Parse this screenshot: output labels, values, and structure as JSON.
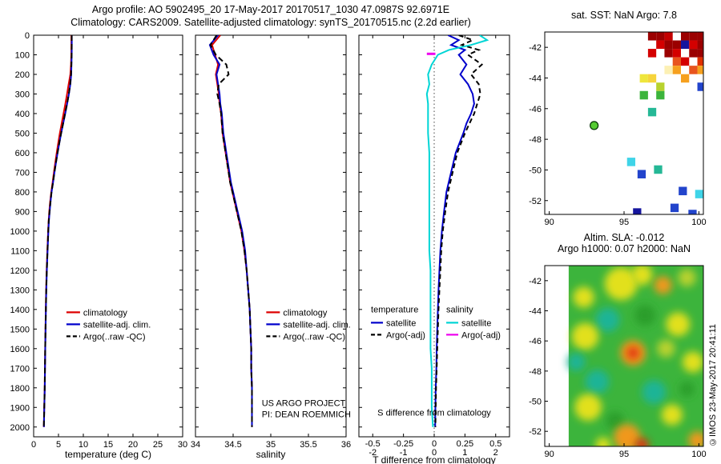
{
  "header": {
    "line1": "Argo profile: AO 5902495_20 17-May-2017 20170517_1030 47.0987S 92.6971E",
    "line2": "Climatology: CARS2009. Satellite-adjusted climatology: synTS_20170515.nc (2.2d earlier)"
  },
  "copyright": "©IMOS 23-May-2017 20:41:11",
  "chart_data": [
    {
      "id": "temperature",
      "type": "line",
      "xlabel": "temperature (deg C)",
      "xlim": [
        0,
        30
      ],
      "xticks": [
        "0",
        "5",
        "10",
        "15",
        "20",
        "25",
        "30"
      ],
      "ylim": [
        0,
        2050
      ],
      "yticks": [
        "0",
        "100",
        "200",
        "300",
        "400",
        "500",
        "600",
        "700",
        "800",
        "900",
        "1000",
        "1100",
        "1200",
        "1300",
        "1400",
        "1500",
        "1600",
        "1700",
        "1800",
        "1900",
        "2000"
      ],
      "ylabels": true,
      "depth": [
        0,
        50,
        100,
        150,
        200,
        250,
        300,
        350,
        400,
        450,
        500,
        550,
        600,
        650,
        700,
        750,
        800,
        850,
        900,
        950,
        1000,
        1100,
        1200,
        1300,
        1400,
        1500,
        1600,
        1700,
        1800,
        1900,
        2000
      ],
      "series": [
        {
          "name": "climatology",
          "color": "#dd0000",
          "values": [
            7.6,
            7.6,
            7.58,
            7.52,
            7.38,
            7.05,
            6.72,
            6.38,
            6.02,
            5.65,
            5.28,
            4.95,
            4.65,
            4.35,
            4.08,
            3.82,
            3.55,
            3.32,
            3.15,
            3.02,
            2.92,
            2.76,
            2.62,
            2.52,
            2.44,
            2.38,
            2.32,
            2.27,
            2.22,
            2.13,
            2.05
          ]
        },
        {
          "name": "satellite-adj. clim.",
          "color": "#0000cc",
          "values": [
            7.68,
            7.68,
            7.66,
            7.62,
            7.56,
            7.38,
            7.1,
            6.75,
            6.35,
            5.95,
            5.55,
            5.18,
            4.82,
            4.5,
            4.2,
            3.92,
            3.62,
            3.4,
            3.22,
            3.06,
            2.96,
            2.8,
            2.66,
            2.55,
            2.47,
            2.4,
            2.34,
            2.29,
            2.24,
            2.15,
            2.06
          ]
        },
        {
          "name": "Argo(..raw -QC)",
          "color": "#000000",
          "dash": "7,4",
          "values": [
            7.66,
            7.66,
            7.64,
            7.6,
            7.54,
            7.36,
            7.08,
            6.73,
            6.33,
            5.93,
            5.53,
            5.16,
            4.8,
            4.48,
            4.18,
            3.9,
            3.6,
            3.38,
            3.2,
            3.04,
            2.94,
            2.79,
            2.65,
            2.54,
            2.46,
            2.39,
            2.33,
            2.28,
            2.23,
            2.14,
            2.05
          ]
        }
      ],
      "legend": {
        "x": 0.22,
        "y": 0.69
      }
    },
    {
      "id": "salinity",
      "type": "line",
      "xlabel": "salinity",
      "xlim": [
        34,
        36
      ],
      "xticks": [
        "34",
        "34.5",
        "35",
        "35.5",
        "36"
      ],
      "ylim": [
        0,
        2050
      ],
      "yticks": [
        "0",
        "100",
        "200",
        "300",
        "400",
        "500",
        "600",
        "700",
        "800",
        "900",
        "1000",
        "1100",
        "1200",
        "1300",
        "1400",
        "1500",
        "1600",
        "1700",
        "1800",
        "1900",
        "2000"
      ],
      "depth": [
        0,
        50,
        100,
        150,
        200,
        250,
        300,
        350,
        400,
        450,
        500,
        550,
        600,
        650,
        700,
        750,
        800,
        850,
        900,
        950,
        1000,
        1100,
        1200,
        1300,
        1400,
        1500,
        1600,
        1700,
        1800,
        1900,
        2000
      ],
      "series": [
        {
          "name": "climatology",
          "color": "#dd0000",
          "values": [
            34.33,
            34.22,
            34.26,
            34.3,
            34.27,
            34.29,
            34.31,
            34.32,
            34.34,
            34.35,
            34.36,
            34.38,
            34.4,
            34.42,
            34.44,
            34.46,
            34.49,
            34.52,
            34.55,
            34.58,
            34.61,
            34.65,
            34.68,
            34.7,
            34.72,
            34.73,
            34.74,
            34.74,
            34.75,
            34.75,
            34.75
          ]
        },
        {
          "name": "satellite-adj. clim.",
          "color": "#0000cc",
          "values": [
            34.3,
            34.19,
            34.24,
            34.32,
            34.28,
            34.3,
            34.32,
            34.33,
            34.35,
            34.36,
            34.37,
            34.39,
            34.41,
            34.43,
            34.45,
            34.47,
            34.5,
            34.53,
            34.56,
            34.59,
            34.62,
            34.66,
            34.68,
            34.7,
            34.72,
            34.73,
            34.74,
            34.74,
            34.75,
            34.75,
            34.75
          ]
        },
        {
          "name": "Argo(..raw -QC)",
          "color": "#000000",
          "dash": "7,4",
          "values": [
            34.28,
            34.2,
            34.27,
            34.41,
            34.44,
            34.31,
            34.29,
            34.32,
            34.34,
            34.35,
            34.36,
            34.38,
            34.4,
            34.42,
            34.44,
            34.46,
            34.49,
            34.52,
            34.55,
            34.58,
            34.61,
            34.65,
            34.68,
            34.7,
            34.72,
            34.73,
            34.74,
            34.74,
            34.75,
            34.75,
            34.75
          ]
        }
      ],
      "legend": {
        "x": 0.47,
        "y": 0.69
      },
      "texts": [
        {
          "x": 0.44,
          "y": 0.923,
          "t": "US ARGO PROJECT"
        },
        {
          "x": 0.44,
          "y": 0.951,
          "t": "PI: DEAN ROEMMICH"
        }
      ]
    },
    {
      "id": "difference",
      "type": "line",
      "xlabel": "T difference from climatology",
      "xlim": [
        -2.45,
        2.45
      ],
      "xticks": [
        "-2",
        "-1",
        "0",
        "1",
        "2"
      ],
      "sticks": [
        "-0.5",
        "-0.25",
        "0",
        "0.25",
        "0.5"
      ],
      "s_scale": 4,
      "zero_line": true,
      "ylim": [
        0,
        2050
      ],
      "yticks": [
        "0",
        "100",
        "200",
        "300",
        "400",
        "500",
        "600",
        "700",
        "800",
        "900",
        "1000",
        "1100",
        "1200",
        "1300",
        "1400",
        "1500",
        "1600",
        "1700",
        "1800",
        "1900",
        "2000"
      ],
      "depth": [
        0,
        25,
        50,
        75,
        100,
        150,
        200,
        250,
        300,
        350,
        400,
        450,
        500,
        600,
        700,
        800,
        900,
        1000,
        1100,
        1200,
        1300,
        1400,
        1500,
        1600,
        1700,
        1800,
        1900,
        2000
      ],
      "series": [
        {
          "name": "temperature satellite",
          "color": "#0000cc",
          "values": [
            0.45,
            0.8,
            0.55,
            1.0,
            0.8,
            1.05,
            0.85,
            1.1,
            1.25,
            1.3,
            1.2,
            1.05,
            0.95,
            0.7,
            0.55,
            0.4,
            0.32,
            0.25,
            0.2,
            0.17,
            0.14,
            0.12,
            0.1,
            0.08,
            0.07,
            0.05,
            0.04,
            0.03
          ]
        },
        {
          "name": "temperature Argo(-adj)",
          "color": "#000000",
          "dash": "6,4",
          "values": [
            0.8,
            1.25,
            0.9,
            1.45,
            1.1,
            1.55,
            1.2,
            1.45,
            1.5,
            1.4,
            1.3,
            1.15,
            1.0,
            0.75,
            0.6,
            0.45,
            0.36,
            0.28,
            0.23,
            0.2,
            0.17,
            0.14,
            0.12,
            0.1,
            0.08,
            0.06,
            0.05,
            0.04
          ]
        },
        {
          "name": "salinity satellite",
          "color": "#00d5d5",
          "scale": 4,
          "values": [
            0.37,
            0.43,
            0.3,
            0.12,
            0.03,
            -0.02,
            -0.05,
            -0.04,
            -0.06,
            -0.05,
            -0.05,
            -0.05,
            -0.05,
            -0.04,
            -0.04,
            -0.04,
            -0.04,
            -0.04,
            -0.04,
            -0.03,
            -0.03,
            -0.03,
            -0.03,
            -0.03,
            -0.02,
            -0.02,
            -0.02,
            -0.01
          ]
        },
        {
          "name": "salinity Argo(-adj)",
          "color": "#ee00ee",
          "scale": 4,
          "width": 3,
          "depth": [
            95,
            95
          ],
          "values": [
            -0.06,
            0.01
          ]
        }
      ],
      "legend_groups": {
        "x": 0.08,
        "colw": 0.5,
        "y": 0.69,
        "cols": [
          {
            "title": "temperature",
            "items": [
              {
                "label": "satellite",
                "color": "#0000cc"
              },
              {
                "label": "Argo(-adj)",
                "color": "#000000",
                "dash": "5,3"
              }
            ]
          },
          {
            "title": "salinity",
            "items": [
              {
                "label": "satellite",
                "color": "#00d5d5"
              },
              {
                "label": "Argo(-adj)",
                "color": "#ee00ee"
              }
            ]
          }
        ]
      },
      "texts": [
        {
          "x": 0.5,
          "y": 0.947,
          "t": "S difference from climatology",
          "anchor": "middle"
        }
      ]
    },
    {
      "id": "sst_map",
      "type": "heatmap",
      "title": [
        "sat. SST: NaN Argo: 7.8"
      ],
      "xlim": [
        89.7,
        100.3
      ],
      "ylim": [
        -41,
        -52.9
      ],
      "xticks": [
        "90",
        "95",
        "100"
      ],
      "yticks": [
        "-42",
        "-44",
        "-46",
        "-48",
        "-50",
        "-52"
      ],
      "cell": 0.55,
      "cells": [
        {
          "x": 96.6,
          "y": -41.0,
          "c": "#9b0000"
        },
        {
          "x": 97.15,
          "y": -41.0,
          "c": "#9b0000"
        },
        {
          "x": 97.7,
          "y": -41.0,
          "c": "#c40000"
        },
        {
          "x": 98.8,
          "y": -41.0,
          "c": "#9b0000"
        },
        {
          "x": 99.35,
          "y": -41.0,
          "c": "#9b0000"
        },
        {
          "x": 99.9,
          "y": -41.0,
          "c": "#9b0000"
        },
        {
          "x": 97.15,
          "y": -41.55,
          "c": "#d40000"
        },
        {
          "x": 97.7,
          "y": -41.55,
          "c": "#9b0000"
        },
        {
          "x": 98.25,
          "y": -41.55,
          "c": "#9b0000"
        },
        {
          "x": 98.8,
          "y": -41.55,
          "c": "#15159e"
        },
        {
          "x": 99.35,
          "y": -41.55,
          "c": "#d40000"
        },
        {
          "x": 99.9,
          "y": -41.55,
          "c": "#9b0000"
        },
        {
          "x": 96.6,
          "y": -42.1,
          "c": "#d40000"
        },
        {
          "x": 97.7,
          "y": -42.1,
          "c": "#9b0000"
        },
        {
          "x": 98.25,
          "y": -42.1,
          "c": "#d40000"
        },
        {
          "x": 99.35,
          "y": -42.1,
          "c": "#9b0000"
        },
        {
          "x": 99.9,
          "y": -42.1,
          "c": "#9b0000"
        },
        {
          "x": 98.25,
          "y": -42.65,
          "c": "#e8541e"
        },
        {
          "x": 98.8,
          "y": -42.65,
          "c": "#d40000"
        },
        {
          "x": 99.9,
          "y": -42.65,
          "c": "#e03000"
        },
        {
          "x": 97.7,
          "y": -43.2,
          "c": "#fcf0b4"
        },
        {
          "x": 98.25,
          "y": -43.2,
          "c": "#f6a01e"
        },
        {
          "x": 99.35,
          "y": -43.2,
          "c": "#e8541e"
        },
        {
          "x": 99.9,
          "y": -43.2,
          "c": "#f6a01e"
        },
        {
          "x": 96.05,
          "y": -43.75,
          "c": "#efe63c"
        },
        {
          "x": 96.6,
          "y": -43.75,
          "c": "#f6d43c"
        },
        {
          "x": 98.8,
          "y": -43.75,
          "c": "#f6a01e"
        },
        {
          "x": 97.15,
          "y": -44.3,
          "c": "#b8d22e"
        },
        {
          "x": 99.9,
          "y": -44.3,
          "c": "#2244cc"
        },
        {
          "x": 96.05,
          "y": -44.85,
          "c": "#3cb43c"
        },
        {
          "x": 97.15,
          "y": -44.85,
          "c": "#3cb43c"
        },
        {
          "x": 96.6,
          "y": -45.95,
          "c": "#25b896"
        },
        {
          "x": 95.2,
          "y": -49.2,
          "c": "#3fd4e8"
        },
        {
          "x": 97.0,
          "y": -49.7,
          "c": "#25b896"
        },
        {
          "x": 95.9,
          "y": -50.0,
          "c": "#2244cc"
        },
        {
          "x": 98.65,
          "y": -51.1,
          "c": "#2244cc"
        },
        {
          "x": 99.75,
          "y": -51.3,
          "c": "#3fd4e8"
        },
        {
          "x": 98.1,
          "y": -52.2,
          "c": "#2244cc"
        },
        {
          "x": 95.6,
          "y": -52.5,
          "c": "#15159e"
        },
        {
          "x": 99.3,
          "y": -52.6,
          "c": "#2244cc"
        }
      ],
      "marker": {
        "x": 93.0,
        "y": -47.1,
        "color": "#55cc33",
        "edge": "#063806"
      }
    },
    {
      "id": "sla_map",
      "type": "heatmap",
      "title": [
        "Altim. SLA: -0.012",
        "Argo h1000: 0.07 h2000: NaN"
      ],
      "xlim": [
        89.7,
        100.3
      ],
      "ylim": [
        -41,
        -53
      ],
      "xticks": [
        "90",
        "95",
        "100"
      ],
      "yticks": [
        "-42",
        "-44",
        "-46",
        "-48",
        "-50",
        "-52"
      ],
      "base": {
        "x0": 91.3,
        "color": "#3cb43c"
      },
      "blobs": [
        {
          "x": 94.8,
          "y": -42.2,
          "r": 1.1,
          "c": "#e2e01e"
        },
        {
          "x": 96.2,
          "y": -41.6,
          "r": 0.7,
          "c": "#e2e01e"
        },
        {
          "x": 97.6,
          "y": -42.3,
          "r": 0.6,
          "c": "#f0981e"
        },
        {
          "x": 99.2,
          "y": -41.8,
          "r": 0.6,
          "c": "#b8d22e"
        },
        {
          "x": 92.3,
          "y": -43.1,
          "r": 0.7,
          "c": "#e2e01e"
        },
        {
          "x": 93.9,
          "y": -44.6,
          "r": 0.8,
          "c": "#1fb496"
        },
        {
          "x": 96.4,
          "y": -44.3,
          "r": 0.7,
          "c": "#2a9e2a"
        },
        {
          "x": 98.6,
          "y": -44.9,
          "r": 0.8,
          "c": "#e2e01e"
        },
        {
          "x": 92.4,
          "y": -45.7,
          "r": 0.9,
          "c": "#e2e01e"
        },
        {
          "x": 95.6,
          "y": -46.8,
          "r": 0.85,
          "c": "#f0981e"
        },
        {
          "x": 95.6,
          "y": -46.8,
          "r": 0.4,
          "c": "#e03010"
        },
        {
          "x": 91.8,
          "y": -47.4,
          "r": 0.6,
          "c": "#1fb496"
        },
        {
          "x": 99.6,
          "y": -47.4,
          "r": 0.7,
          "c": "#e2e01e"
        },
        {
          "x": 97.8,
          "y": -46.5,
          "r": 0.6,
          "c": "#b8d22e"
        },
        {
          "x": 93.2,
          "y": -48.7,
          "r": 0.8,
          "c": "#1fb496"
        },
        {
          "x": 97.0,
          "y": -49.4,
          "r": 0.8,
          "c": "#1fb496"
        },
        {
          "x": 99.2,
          "y": -49.2,
          "r": 0.5,
          "c": "#2a9e2a"
        },
        {
          "x": 92.6,
          "y": -50.4,
          "r": 0.9,
          "c": "#e2e01e"
        },
        {
          "x": 98.2,
          "y": -50.9,
          "r": 0.7,
          "c": "#e2e01e"
        },
        {
          "x": 94.4,
          "y": -51.3,
          "r": 0.6,
          "c": "#2a9e2a"
        },
        {
          "x": 95.2,
          "y": -52.4,
          "r": 0.9,
          "c": "#f0981e"
        },
        {
          "x": 96.2,
          "y": -52.9,
          "r": 0.45,
          "c": "#e03010"
        },
        {
          "x": 93.6,
          "y": -52.9,
          "r": 0.5,
          "c": "#e2e01e"
        },
        {
          "x": 99.9,
          "y": -52.6,
          "r": 0.6,
          "c": "#f0981e"
        }
      ]
    }
  ]
}
